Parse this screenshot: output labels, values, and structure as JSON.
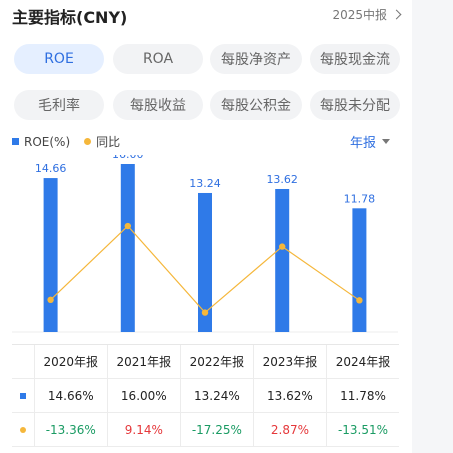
{
  "header": {
    "title": "主要指标(CNY)",
    "report_link": "2025中报"
  },
  "tabs": [
    {
      "label": "ROE",
      "active": true
    },
    {
      "label": "ROA",
      "active": false
    },
    {
      "label": "每股净资产",
      "active": false
    },
    {
      "label": "每股现金流",
      "active": false
    },
    {
      "label": "毛利率",
      "active": false
    },
    {
      "label": "每股收益",
      "active": false
    },
    {
      "label": "每股公积金",
      "active": false
    },
    {
      "label": "每股未分配",
      "active": false
    }
  ],
  "period_selector": "年报",
  "colors": {
    "bar": "#2f7ae8",
    "line": "#f5b73b",
    "active_tab_text": "#2f6fe0",
    "negative": "#1a9b63",
    "positive": "#e5383b"
  },
  "chart_data": {
    "type": "bar",
    "categories": [
      "2020年报",
      "2021年报",
      "2022年报",
      "2023年报",
      "2024年报"
    ],
    "series": [
      {
        "name": "ROE(%)",
        "type": "bar",
        "values": [
          14.66,
          16.0,
          13.24,
          13.62,
          11.78
        ],
        "labels": [
          "14.66",
          "16.00",
          "13.24",
          "13.62",
          "11.78"
        ]
      },
      {
        "name": "同比",
        "type": "line",
        "values": [
          -13.36,
          9.14,
          -17.25,
          2.87,
          -13.51
        ]
      }
    ],
    "legend_position": "top-left"
  },
  "table": {
    "headers": [
      "2020年报",
      "2021年报",
      "2022年报",
      "2023年报",
      "2024年报"
    ],
    "roe_row": [
      "14.66%",
      "16.00%",
      "13.24%",
      "13.62%",
      "11.78%"
    ],
    "yoy_row": [
      "-13.36%",
      "9.14%",
      "-17.25%",
      "2.87%",
      "-13.51%"
    ]
  }
}
